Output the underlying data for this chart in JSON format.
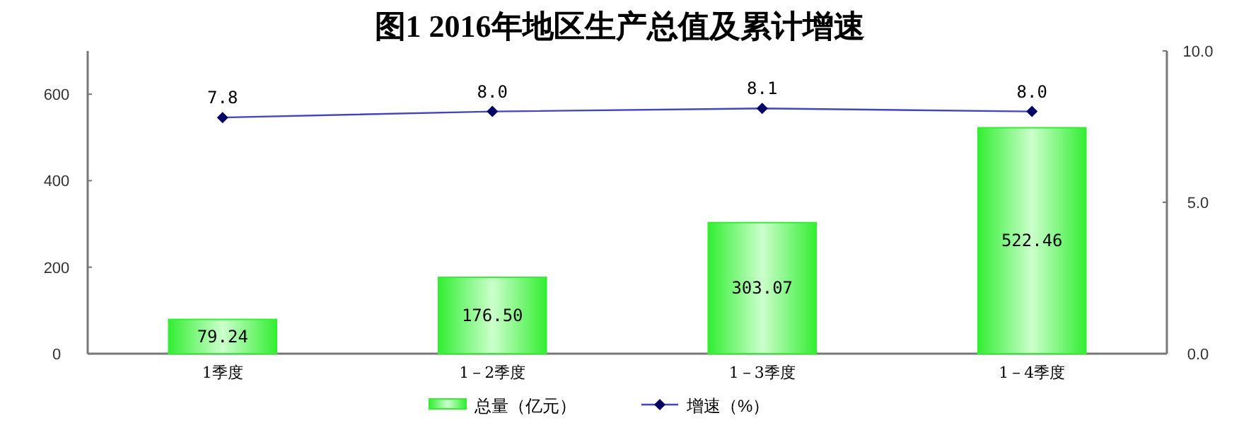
{
  "chart_data": {
    "type": "bar",
    "title": "图1   2016年地区生产总值及累计增速",
    "categories": [
      "1季度",
      "1－2季度",
      "1－3季度",
      "1－4季度"
    ],
    "series": [
      {
        "name": "总量（亿元）",
        "color": "#33ee33",
        "values": [
          79.24,
          176.5,
          303.07,
          522.46
        ],
        "value_labels": [
          "79.24",
          "176.50",
          "303.07",
          "522.46"
        ]
      },
      {
        "name": "增速（%）",
        "type": "line",
        "axis": "y2",
        "color": "#4444bb",
        "marker": "diamond",
        "values": [
          7.8,
          8.0,
          8.1,
          8.0
        ],
        "value_labels": [
          "7.8",
          "8.0",
          "8.1",
          "8.0"
        ]
      }
    ],
    "ylim": [
      0,
      700
    ],
    "yticks": [
      0,
      200,
      400,
      600
    ],
    "y2lim": [
      0,
      10
    ],
    "y2ticks": [
      {
        "value": 0,
        "label": "0.0"
      },
      {
        "value": 5,
        "label": "5.0"
      },
      {
        "value": 10,
        "label": "10.0"
      }
    ],
    "grid": false,
    "legend": "bottom"
  }
}
